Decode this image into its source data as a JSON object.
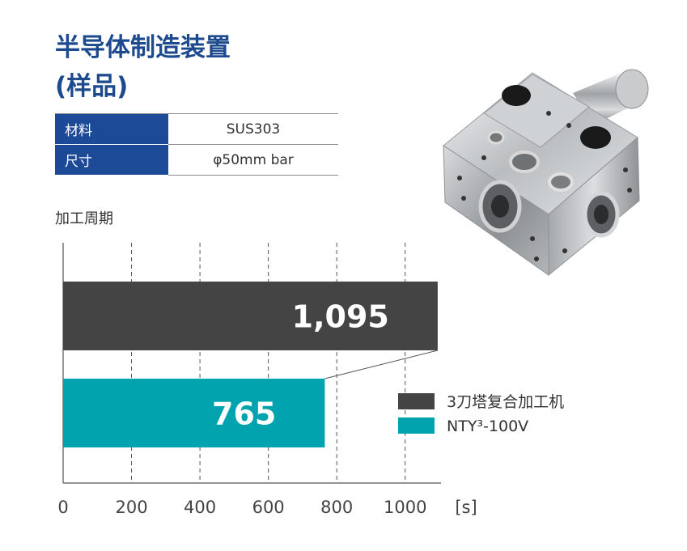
{
  "title": {
    "line1": "半导体制造装置",
    "line2": "(样品)"
  },
  "spec": [
    {
      "label": "材料",
      "value": "SUS303"
    },
    {
      "label": "尺寸",
      "value": "φ50mm bar"
    }
  ],
  "colors": {
    "title": "#1d4a8f",
    "table_header": "#1c4a97",
    "series_1": "#444444",
    "series_2": "#00a3ae"
  },
  "chart_data": {
    "type": "bar",
    "orientation": "horizontal",
    "ylabel": "加工周期",
    "x_unit": "[s]",
    "xlim": [
      0,
      1100
    ],
    "xticks": [
      0,
      200,
      400,
      600,
      800,
      1000
    ],
    "grid": true,
    "legend_position": "right",
    "series": [
      {
        "name": "3刀塔复合加工机",
        "value": 1095,
        "label": "1,095",
        "color": "#444444"
      },
      {
        "name": "NTY³-100V",
        "value": 765,
        "label": "765",
        "color": "#00a3ae"
      }
    ]
  }
}
